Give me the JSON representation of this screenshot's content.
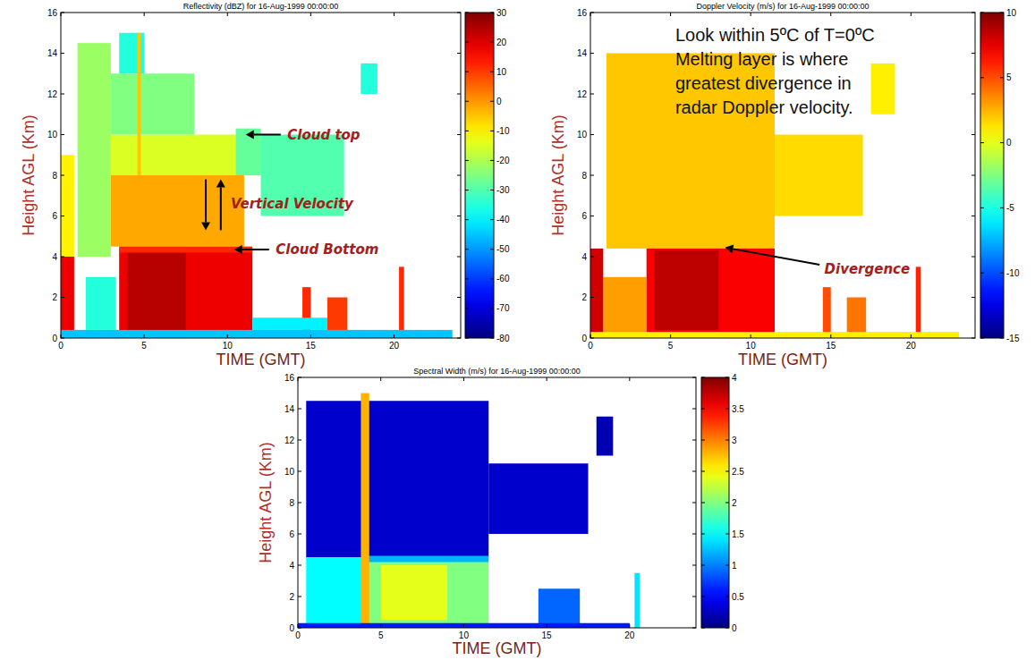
{
  "chart_data": [
    {
      "type": "heatmap",
      "title": "Reflectivity (dBZ) for 16-Aug-1999 00:00:00",
      "x_label": "TIME (GMT)",
      "y_label": "Height AGL (Km)",
      "xlim": [
        0,
        24
      ],
      "xticks": [
        0,
        5,
        10,
        15,
        20
      ],
      "ylim": [
        0,
        16
      ],
      "yticks": [
        0,
        2,
        4,
        6,
        8,
        10,
        12,
        14,
        16
      ],
      "colorbar": {
        "range": [
          -80,
          30
        ],
        "ticks": [
          30,
          20,
          10,
          0,
          -10,
          -20,
          -30,
          -40,
          -50,
          -60,
          -70,
          -80
        ]
      },
      "cells": [
        {
          "x": [
            1,
            3
          ],
          "y": [
            4,
            14.5
          ],
          "value": -22
        },
        {
          "x": [
            1.5,
            3.3
          ],
          "y": [
            0.4,
            3
          ],
          "value": -35
        },
        {
          "x": [
            0,
            0.8
          ],
          "y": [
            4,
            9
          ],
          "value": -10
        },
        {
          "x": [
            0,
            0.8
          ],
          "y": [
            0,
            4
          ],
          "value": 18
        },
        {
          "x": [
            3,
            11
          ],
          "y": [
            4.5,
            8
          ],
          "value": -2
        },
        {
          "x": [
            3,
            11.5
          ],
          "y": [
            8,
            10
          ],
          "value": -15
        },
        {
          "x": [
            3,
            8
          ],
          "y": [
            10,
            13
          ],
          "value": -25
        },
        {
          "x": [
            3.5,
            5
          ],
          "y": [
            13,
            15
          ],
          "value": -35
        },
        {
          "x": [
            10.5,
            12
          ],
          "y": [
            8,
            10.3
          ],
          "value": -28
        },
        {
          "x": [
            4.6,
            4.8
          ],
          "y": [
            8,
            15
          ],
          "value": -5
        },
        {
          "x": [
            3.5,
            11.5
          ],
          "y": [
            0,
            4.4
          ],
          "value": 18
        },
        {
          "x": [
            4,
            7.5
          ],
          "y": [
            0.4,
            4.2
          ],
          "value": 24
        },
        {
          "x": [
            3.5,
            11.5
          ],
          "y": [
            4.2,
            4.5
          ],
          "value": 12
        },
        {
          "x": [
            12,
            17
          ],
          "y": [
            6,
            10
          ],
          "value": -30
        },
        {
          "x": [
            14.5,
            15
          ],
          "y": [
            0,
            2.5
          ],
          "value": 12
        },
        {
          "x": [
            16,
            17.2
          ],
          "y": [
            0,
            2
          ],
          "value": 10
        },
        {
          "x": [
            18,
            19
          ],
          "y": [
            12,
            13.5
          ],
          "value": -35
        },
        {
          "x": [
            20.3,
            20.6
          ],
          "y": [
            0,
            3.5
          ],
          "value": 12
        },
        {
          "x": [
            11.5,
            16
          ],
          "y": [
            0.4,
            1
          ],
          "value": -40
        },
        {
          "x": [
            0,
            23.5
          ],
          "y": [
            0,
            0.4
          ],
          "value": -45
        }
      ],
      "annotations": [
        {
          "text": "Cloud top",
          "x": 13.6,
          "y": 10,
          "arrows": [
            [
              13.2,
              10,
              11.1,
              10
            ]
          ]
        },
        {
          "text": "Vertical Velocity",
          "x": 10.2,
          "y": 6.6,
          "arrows": [
            [
              8.7,
              7.8,
              8.7,
              5.3
            ],
            [
              9.6,
              5.3,
              9.6,
              7.8
            ]
          ]
        },
        {
          "text": "Cloud Bottom",
          "x": 12.9,
          "y": 4.35,
          "arrows": [
            [
              12.5,
              4.35,
              10.4,
              4.35
            ]
          ]
        }
      ]
    },
    {
      "type": "heatmap",
      "title": "Doppler Velocity (m/s) for 16-Aug-1999 00:00:00",
      "x_label": "TIME (GMT)",
      "y_label": "Height AGL (Km)",
      "xlim": [
        0,
        24
      ],
      "xticks": [
        0,
        5,
        10,
        15,
        20
      ],
      "ylim": [
        0,
        16
      ],
      "yticks": [
        0,
        2,
        4,
        6,
        8,
        10,
        12,
        14,
        16
      ],
      "colorbar": {
        "range": [
          -15,
          10
        ],
        "ticks": [
          10,
          5,
          0,
          -5,
          -10,
          -15
        ]
      },
      "cells": [
        {
          "x": [
            1,
            11.5
          ],
          "y": [
            4.4,
            14
          ],
          "value": 2
        },
        {
          "x": [
            0.8,
            3.5
          ],
          "y": [
            0,
            3
          ],
          "value": 3
        },
        {
          "x": [
            0,
            0.8
          ],
          "y": [
            0,
            4.4
          ],
          "value": 8
        },
        {
          "x": [
            3.5,
            11.5
          ],
          "y": [
            0,
            4.4
          ],
          "value": 7
        },
        {
          "x": [
            4,
            8
          ],
          "y": [
            0.4,
            4.3
          ],
          "value": 8.5
        },
        {
          "x": [
            11.5,
            17
          ],
          "y": [
            6,
            10
          ],
          "value": 1.5
        },
        {
          "x": [
            14.5,
            15
          ],
          "y": [
            0,
            2.5
          ],
          "value": 5
        },
        {
          "x": [
            16,
            17.2
          ],
          "y": [
            0,
            2
          ],
          "value": 4
        },
        {
          "x": [
            17.5,
            19
          ],
          "y": [
            11,
            13.5
          ],
          "value": 1
        },
        {
          "x": [
            20.3,
            20.6
          ],
          "y": [
            0,
            3.5
          ],
          "value": 6
        },
        {
          "x": [
            0,
            23
          ],
          "y": [
            0,
            0.3
          ],
          "value": 1
        }
      ],
      "annotations": [
        {
          "lines": [
            "Look within 5ºC of T=0ºC",
            "Melting layer is where",
            "greatest divergence in",
            "radar Doppler velocity."
          ],
          "x": 5.3,
          "y": 15.3
        },
        {
          "text": "Divergence",
          "x": 14.6,
          "y": 3.4,
          "arrows": [
            [
              14.3,
              3.6,
              8.4,
              4.45
            ]
          ]
        }
      ]
    },
    {
      "type": "heatmap",
      "title": "Spectral Width (m/s) for 16-Aug-1999 00:00:00",
      "x_label": "TIME (GMT)",
      "y_label": "Height AGL (Km)",
      "xlim": [
        0,
        24
      ],
      "xticks": [
        0,
        5,
        10,
        15,
        20
      ],
      "ylim": [
        0,
        16
      ],
      "yticks": [
        0,
        2,
        4,
        6,
        8,
        10,
        12,
        14,
        16
      ],
      "colorbar": {
        "range": [
          0,
          4
        ],
        "ticks": [
          4,
          3.5,
          3,
          2.5,
          2,
          1.5,
          1,
          0.5,
          0
        ]
      },
      "cells": [
        {
          "x": [
            0.5,
            11.5
          ],
          "y": [
            4.5,
            14.5
          ],
          "value": 0.3
        },
        {
          "x": [
            0.5,
            4
          ],
          "y": [
            0,
            4.5
          ],
          "value": 1.5
        },
        {
          "x": [
            4,
            11.5
          ],
          "y": [
            0,
            4.4
          ],
          "value": 2
        },
        {
          "x": [
            5,
            9
          ],
          "y": [
            0.5,
            4
          ],
          "value": 2.4
        },
        {
          "x": [
            4,
            11.5
          ],
          "y": [
            4.2,
            4.6
          ],
          "value": 1.2
        },
        {
          "x": [
            3.8,
            4.3
          ],
          "y": [
            0,
            15
          ],
          "value": 2.8
        },
        {
          "x": [
            11.5,
            17.5
          ],
          "y": [
            6,
            10.5
          ],
          "value": 0.3
        },
        {
          "x": [
            14.5,
            17
          ],
          "y": [
            0,
            2.5
          ],
          "value": 0.9
        },
        {
          "x": [
            18,
            19
          ],
          "y": [
            11,
            13.5
          ],
          "value": 0.2
        },
        {
          "x": [
            20.3,
            20.6
          ],
          "y": [
            0,
            3.5
          ],
          "value": 1.4
        },
        {
          "x": [
            0,
            20
          ],
          "y": [
            0,
            0.3
          ],
          "value": 0.6
        }
      ],
      "annotations": []
    }
  ]
}
